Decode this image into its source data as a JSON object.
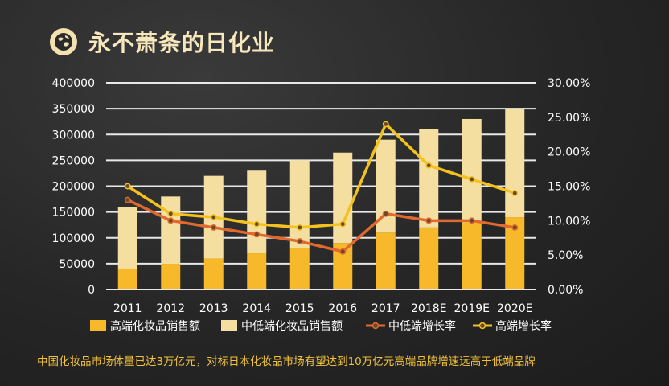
{
  "page": {
    "title": "永不萧条的日化业",
    "caption": "中国化妆品市场体量已达3万亿元，对标日本化妆品市场有望达到10万亿元高端品牌增速远高于低端品牌"
  },
  "colors": {
    "high_end_sales": "#f7b82a",
    "mid_low_sales": "#f5dfa0",
    "mid_low_growth": "#e0692f",
    "high_end_growth": "#f3c21f",
    "title": "#f6e7bd",
    "caption": "#f2c23a"
  },
  "chart_data": {
    "type": "bar",
    "stacked": true,
    "categories": [
      "2011",
      "2012",
      "2013",
      "2014",
      "2015",
      "2016",
      "2017",
      "2018E",
      "2019E",
      "2020E"
    ],
    "series": [
      {
        "name": "高端化妆品销售额",
        "type": "bar",
        "axis": "left",
        "values": [
          40000,
          50000,
          60000,
          70000,
          80000,
          90000,
          110000,
          120000,
          130000,
          140000
        ]
      },
      {
        "name": "中低端化妆品销售额",
        "type": "bar",
        "axis": "left",
        "values": [
          120000,
          130000,
          160000,
          160000,
          170000,
          175000,
          180000,
          190000,
          200000,
          210000
        ]
      },
      {
        "name": "中低端增长率",
        "type": "line",
        "axis": "right",
        "values": [
          0.13,
          0.1,
          0.09,
          0.08,
          0.07,
          0.055,
          0.11,
          0.1,
          0.1,
          0.09
        ]
      },
      {
        "name": "高端增长率",
        "type": "line",
        "axis": "right",
        "values": [
          0.15,
          0.11,
          0.105,
          0.095,
          0.09,
          0.095,
          0.24,
          0.18,
          0.16,
          0.14
        ]
      }
    ],
    "y_left": {
      "min": 0,
      "max": 400000,
      "ticks": [
        "400000",
        "350000",
        "300000",
        "250000",
        "200000",
        "150000",
        "100000",
        "50000",
        "0"
      ]
    },
    "y_right": {
      "min": 0,
      "max": 0.3,
      "ticks": [
        "30.00%",
        "25.00%",
        "20.00%",
        "15.00%",
        "10.00%",
        "5.00%",
        "0.00%"
      ]
    },
    "grid": true,
    "legend_position": "bottom"
  }
}
